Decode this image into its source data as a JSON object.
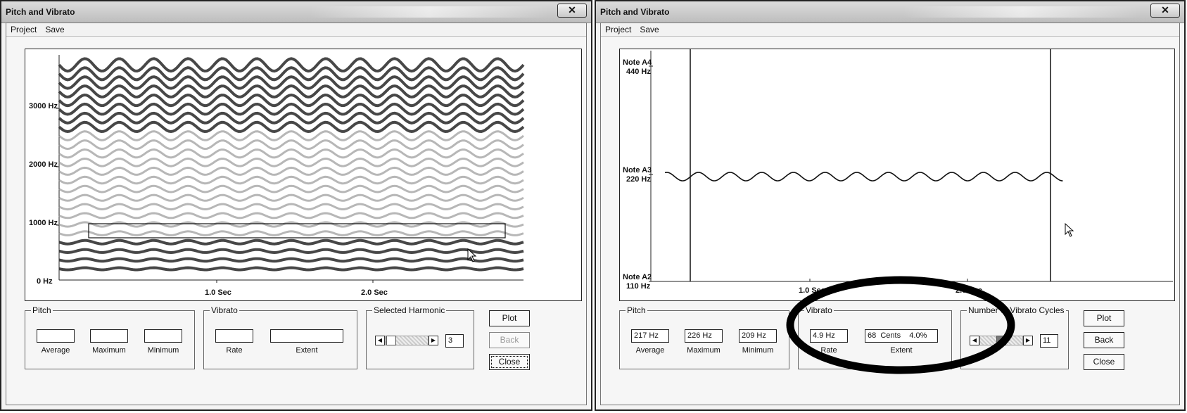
{
  "left": {
    "title": "Pitch and Vibrato",
    "menu": [
      "Project",
      "Save"
    ],
    "y_labels": [
      "3000 Hz",
      "2000 Hz",
      "1000 Hz",
      "0  Hz"
    ],
    "x_labels": [
      "1.0 Sec",
      "2.0 Sec"
    ],
    "pitch": {
      "title": "Pitch",
      "average": "",
      "maximum": "",
      "minimum": "",
      "average_label": "Average",
      "maximum_label": "Maximum",
      "minimum_label": "Minimum"
    },
    "vibrato": {
      "title": "Vibrato",
      "rate": "",
      "extent": "",
      "rate_label": "Rate",
      "extent_label": "Extent"
    },
    "harmonic": {
      "title": "Selected Harmonic",
      "value": "3"
    },
    "buttons": {
      "plot": "Plot",
      "back": "Back",
      "close": "Close"
    }
  },
  "right": {
    "title": "Pitch and Vibrato",
    "menu": [
      "Project",
      "Save"
    ],
    "y_labels": {
      "a4_note": "Note A4",
      "a4_hz": "440 Hz",
      "a3_note": "Note A3",
      "a3_hz": "220 Hz",
      "a2_note": "Note A2",
      "a2_hz": "110 Hz"
    },
    "x_labels": [
      "1.0 Sec",
      "2.0 Sec"
    ],
    "pitch": {
      "title": "Pitch",
      "average": "217 Hz",
      "maximum": "226 Hz",
      "minimum": "209 Hz",
      "average_label": "Average",
      "maximum_label": "Maximum",
      "minimum_label": "Minimum"
    },
    "vibrato": {
      "title": "Vibrato",
      "rate": "4.9 Hz",
      "extent": "68  Cents    4.0%",
      "rate_label": "Rate",
      "extent_label": "Extent"
    },
    "cycles": {
      "title": "Number of Vibrato Cycles",
      "value": "11"
    },
    "buttons": {
      "plot": "Plot",
      "back": "Back",
      "close": "Close"
    }
  },
  "colors": {
    "harmonic_dark": "#333333",
    "harmonic_light": "#999999",
    "highlight_ellipse": "#000000"
  }
}
